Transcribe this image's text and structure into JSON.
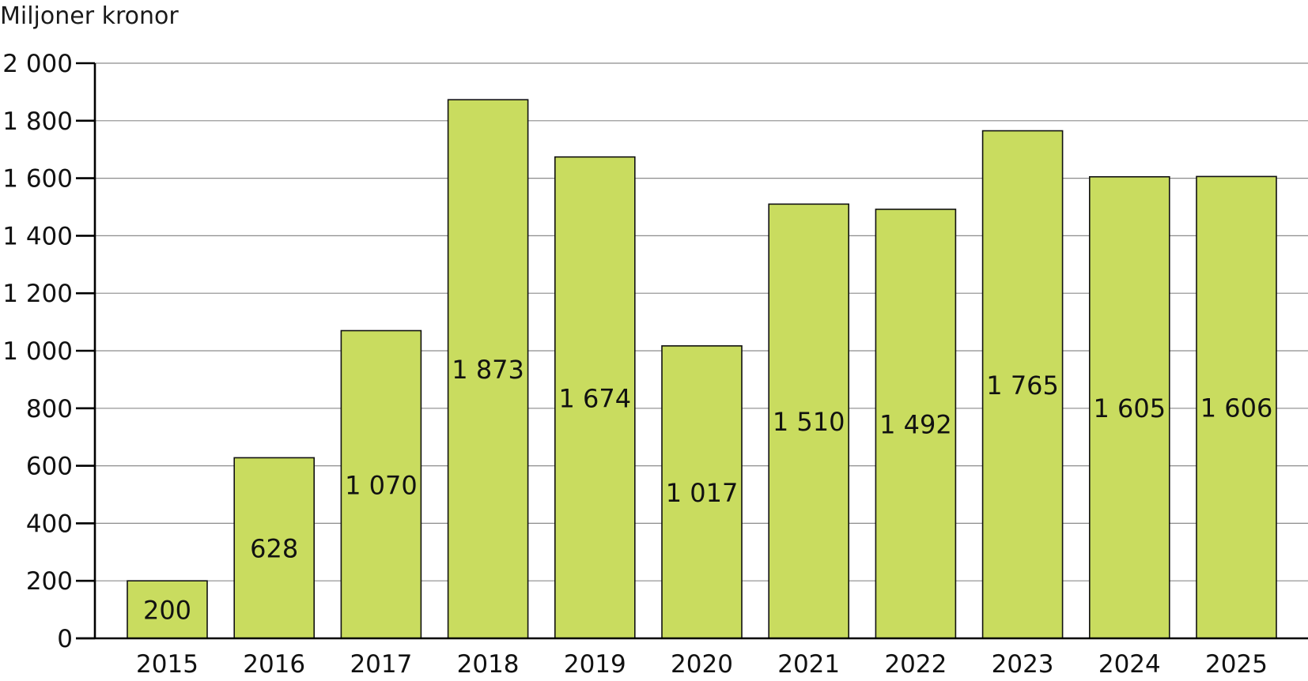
{
  "chart_data": {
    "type": "bar",
    "ylabel": "Miljoner kronor",
    "categories": [
      "2015",
      "2016",
      "2017",
      "2018",
      "2019",
      "2020",
      "2021",
      "2022",
      "2023",
      "2024",
      "2025"
    ],
    "values": [
      200,
      628,
      1070,
      1873,
      1674,
      1017,
      1510,
      1492,
      1765,
      1605,
      1606
    ],
    "data_labels": [
      "200",
      "628",
      "1 070",
      "1 873",
      "1 674",
      "1 017",
      "1 510",
      "1 492",
      "1 765",
      "1 605",
      "1 606"
    ],
    "ylim": [
      0,
      2000
    ],
    "yticks": [
      0,
      200,
      400,
      600,
      800,
      1000,
      1200,
      1400,
      1600,
      1800,
      2000
    ],
    "ytick_labels": [
      "0",
      "200",
      "400",
      "600",
      "800",
      "1 000",
      "1 200",
      "1 400",
      "1 600",
      "1 800",
      "2 000"
    ],
    "grid": true,
    "bar_color": "#c9dc5f"
  }
}
